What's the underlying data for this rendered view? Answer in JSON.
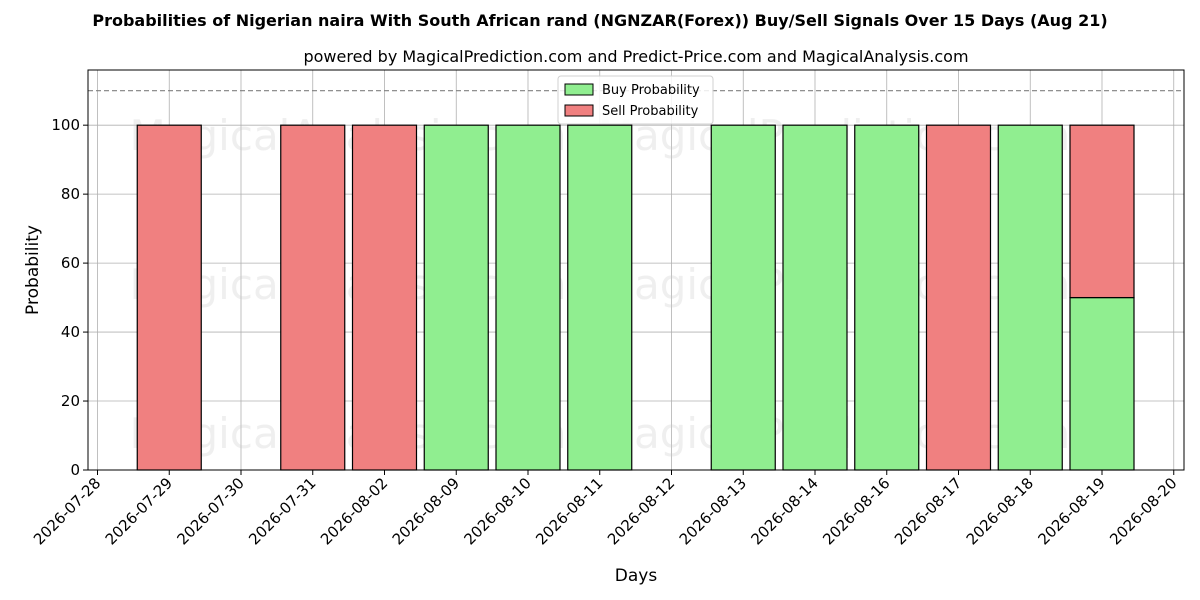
{
  "chart_data": {
    "type": "bar",
    "stacked": true,
    "title": "Probabilities of Nigerian naira With South African rand (NGNZAR(Forex)) Buy/Sell Signals Over 15 Days (Aug 21)",
    "subtitle": "powered by MagicalPrediction.com and Predict-Price.com and MagicalAnalysis.com",
    "xlabel": "Days",
    "ylabel": "Probability",
    "ylim": [
      0,
      116
    ],
    "yticks": [
      0,
      20,
      40,
      60,
      80,
      100
    ],
    "xticks": [
      "2026-07-28",
      "2026-07-29",
      "2026-07-30",
      "2026-07-31",
      "2026-08-02",
      "2026-08-09",
      "2026-08-10",
      "2026-08-11",
      "2026-08-12",
      "2026-08-13",
      "2026-08-14",
      "2026-08-16",
      "2026-08-17",
      "2026-08-18",
      "2026-08-19",
      "2026-08-20"
    ],
    "categories": [
      "2026-07-29",
      "2026-07-31",
      "2026-08-02",
      "2026-08-09",
      "2026-08-10",
      "2026-08-11",
      "2026-08-13",
      "2026-08-14",
      "2026-08-16",
      "2026-08-17",
      "2026-08-18",
      "2026-08-19"
    ],
    "series": [
      {
        "name": "Buy Probability",
        "color": "#90ee90",
        "values": [
          0,
          0,
          0,
          100,
          100,
          100,
          100,
          100,
          100,
          0,
          100,
          50
        ]
      },
      {
        "name": "Sell Probability",
        "color": "#f08080",
        "values": [
          100,
          100,
          100,
          0,
          0,
          0,
          0,
          0,
          0,
          100,
          0,
          50
        ]
      }
    ],
    "reference_line": 110,
    "grid": true,
    "legend_position": "top-center",
    "watermarks": [
      "MagicalAnalysis.com",
      "MagicalPrediction.com"
    ]
  }
}
